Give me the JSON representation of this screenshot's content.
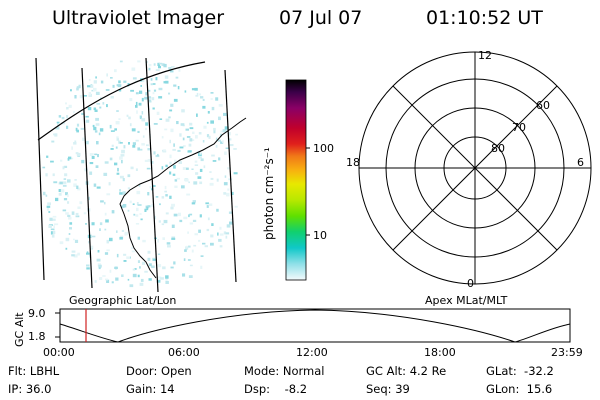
{
  "header": {
    "instrument": "Ultraviolet Imager",
    "date": "07 Jul 07",
    "time": "01:10:52 UT"
  },
  "colorbar": {
    "unit_label": "photon cm⁻²s⁻¹",
    "ticks": [
      "100",
      "10"
    ],
    "colors": [
      "#000000",
      "#3a0048",
      "#8a0066",
      "#c0002c",
      "#e0201c",
      "#f07818",
      "#f8b010",
      "#e8e800",
      "#b8e800",
      "#60e000",
      "#10d070",
      "#10c8c8",
      "#90e0e8",
      "#d0f0f4",
      "#ffffff"
    ]
  },
  "polar_plot": {
    "mlt_labels": {
      "top": "12",
      "left": "18",
      "right": "6",
      "bottom": "0"
    },
    "lat_labels": [
      "60",
      "70",
      "80"
    ]
  },
  "left_map": {
    "label": "Geographic Lat/Lon"
  },
  "right_map": {
    "label": "Apex MLat/MLT"
  },
  "orbit_plot": {
    "y_axis_label": "GC Alt",
    "y_ticks": [
      "9.0",
      "1.8"
    ],
    "x_ticks": [
      "00:00",
      "06:00",
      "12:00",
      "18:00",
      "23:59"
    ],
    "current_time_marker_color": "#d02020"
  },
  "info": {
    "flt": "Flt: LBHL",
    "ip": "IP: 36.0",
    "door": "Door: Open",
    "gain": "Gain: 14",
    "mode": "Mode: Normal",
    "dsp": "Dsp:    -8.2",
    "gc_alt": "GC Alt: 4.2 Re",
    "seq": "Seq: 39",
    "glat": "GLat:  -32.2",
    "glon": "GLon:  15.6"
  }
}
